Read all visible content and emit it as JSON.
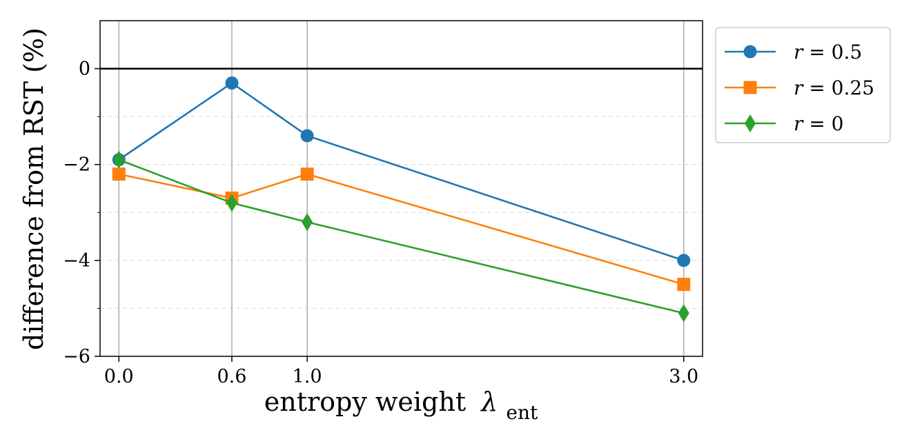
{
  "chart_data": {
    "type": "line",
    "xlabel": "entropy weight",
    "xlabel_symbol": "λ",
    "xlabel_subscript": "ent",
    "ylabel": "difference from RST (%)",
    "x": [
      0.0,
      0.6,
      1.0,
      3.0
    ],
    "x_tick_labels": [
      "0.0",
      "0.6",
      "1.0",
      "3.0"
    ],
    "xlim": [
      -0.1,
      3.1
    ],
    "ylim": [
      -6,
      1
    ],
    "y_ticks": [
      0,
      -2,
      -4,
      -6
    ],
    "y_tick_labels": [
      "0",
      "−2",
      "−4",
      "−6"
    ],
    "y_minor_gridlines": [
      -1,
      -2,
      -3,
      -4,
      -5
    ],
    "x_gridlines": true,
    "reference_line_y": 0,
    "legend_position": "outside-right-top",
    "series": [
      {
        "name": "r = 0.5",
        "legend_var": "r",
        "legend_value": "0.5",
        "values": [
          -1.9,
          -0.3,
          -1.4,
          -4.0
        ],
        "color": "#1f77b4",
        "marker": "circle"
      },
      {
        "name": "r = 0.25",
        "legend_var": "r",
        "legend_value": "0.25",
        "values": [
          -2.2,
          -2.7,
          -2.2,
          -4.5
        ],
        "color": "#ff7f0e",
        "marker": "square"
      },
      {
        "name": "r = 0",
        "legend_var": "r",
        "legend_value": "0",
        "values": [
          -1.9,
          -2.8,
          -3.2,
          -5.1
        ],
        "color": "#2ca02c",
        "marker": "diamond"
      }
    ]
  }
}
